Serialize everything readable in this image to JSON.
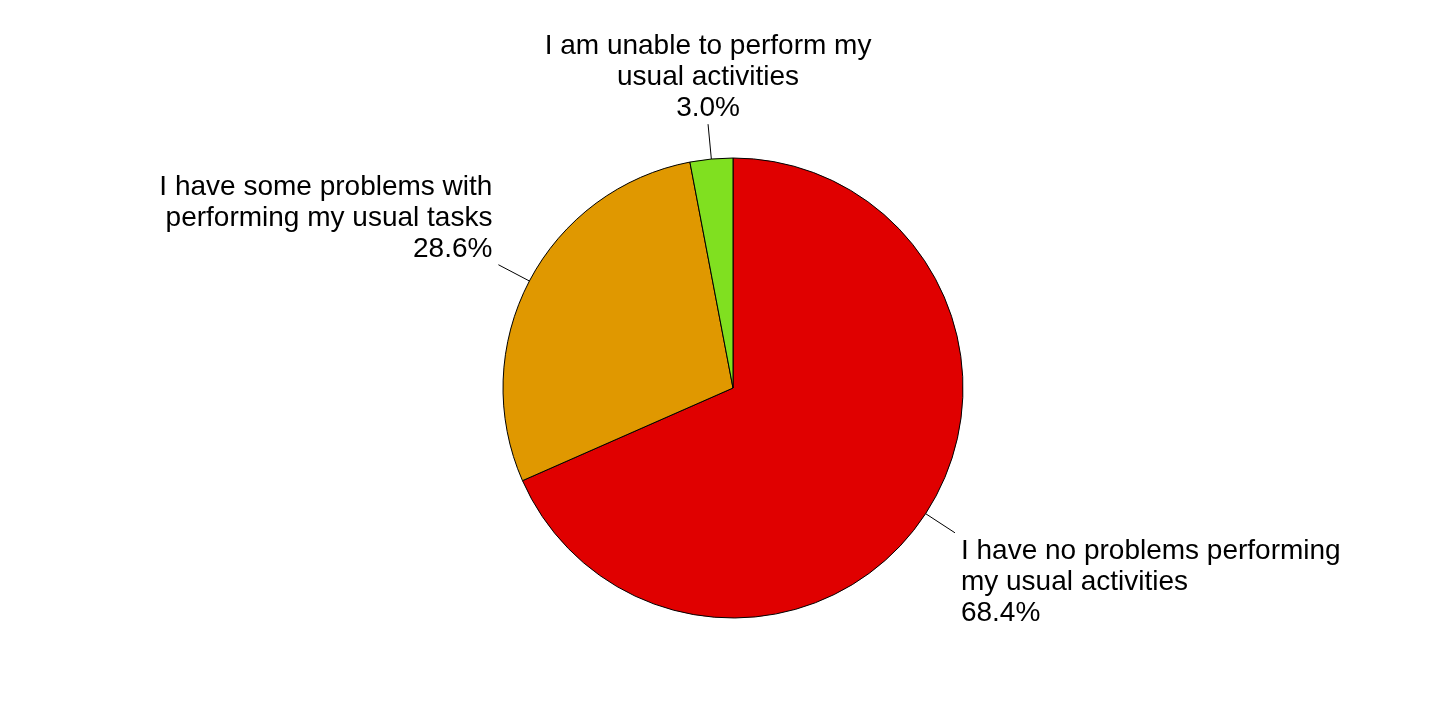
{
  "chart_data": {
    "type": "pie",
    "categories": [
      "I have no problems performing my usual activities",
      "I have some problems with performing my usual tasks",
      "I am unable to perform my usual activities"
    ],
    "values": [
      68.4,
      28.6,
      3.0
    ],
    "value_labels": [
      "68.4%",
      "28.6%",
      "3.0%"
    ],
    "colors": [
      "#e00000",
      "#e09800",
      "#80e020"
    ],
    "legend": false
  }
}
